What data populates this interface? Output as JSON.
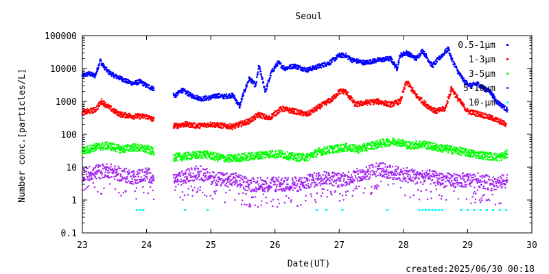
{
  "chart_data": {
    "type": "scatter",
    "title": "Seoul",
    "xlabel": "Date(UT)",
    "ylabel": "Number conc.[particles/L]",
    "x_scale": "linear",
    "y_scale": "log",
    "xlim": [
      23,
      30
    ],
    "ylim": [
      0.1,
      100000
    ],
    "x_ticks": [
      "23",
      "24",
      "25",
      "26",
      "27",
      "28",
      "29",
      "30"
    ],
    "y_ticks": [
      "0.1",
      "1",
      "10",
      "100",
      "1000",
      "10000",
      "100000"
    ],
    "legend_position": "top-right",
    "footer": "created:2025/06/30 00:18",
    "series": [
      {
        "name": "0.5-1μm",
        "color": "#0000ff",
        "x": [
          23.0,
          23.1,
          23.2,
          23.28,
          23.3,
          23.4,
          23.5,
          23.6,
          23.7,
          23.8,
          23.9,
          24.0,
          24.1,
          24.45,
          24.55,
          24.7,
          24.85,
          25.0,
          25.1,
          25.2,
          25.3,
          25.35,
          25.45,
          25.5,
          25.6,
          25.7,
          25.75,
          25.85,
          25.95,
          26.05,
          26.15,
          26.3,
          26.5,
          26.7,
          26.85,
          27.0,
          27.1,
          27.2,
          27.4,
          27.6,
          27.8,
          27.9,
          27.95,
          28.05,
          28.2,
          28.3,
          28.45,
          28.6,
          28.7,
          28.75,
          28.85,
          28.95,
          29.05,
          29.15,
          29.25,
          29.35,
          29.45,
          29.55,
          29.62
        ],
        "y": [
          6000,
          7000,
          6000,
          18000,
          14000,
          8000,
          6000,
          5000,
          4000,
          3500,
          4000,
          3000,
          2500,
          1500,
          2200,
          1500,
          1200,
          1300,
          1500,
          1400,
          1500,
          1500,
          700,
          1500,
          5000,
          3000,
          12000,
          2000,
          8000,
          15000,
          10000,
          12000,
          9000,
          12000,
          15000,
          25000,
          25000,
          18000,
          15000,
          18000,
          20000,
          10000,
          25000,
          30000,
          20000,
          35000,
          12000,
          25000,
          40000,
          20000,
          8000,
          4000,
          3000,
          3500,
          2500,
          2000,
          1000,
          700,
          550
        ]
      },
      {
        "name": "1-3μm",
        "color": "#ff0000",
        "x": [
          23.0,
          23.1,
          23.2,
          23.3,
          23.4,
          23.5,
          23.6,
          23.8,
          24.0,
          24.1,
          24.45,
          24.6,
          24.8,
          25.0,
          25.2,
          25.35,
          25.45,
          25.6,
          25.75,
          25.9,
          26.1,
          26.3,
          26.5,
          26.7,
          26.9,
          27.0,
          27.1,
          27.25,
          27.4,
          27.6,
          27.8,
          27.95,
          28.05,
          28.2,
          28.35,
          28.5,
          28.65,
          28.75,
          28.85,
          29.0,
          29.2,
          29.4,
          29.6
        ],
        "y": [
          450,
          500,
          550,
          1000,
          700,
          500,
          400,
          350,
          350,
          280,
          180,
          200,
          180,
          200,
          180,
          170,
          200,
          250,
          400,
          300,
          600,
          500,
          400,
          700,
          1200,
          2000,
          2000,
          800,
          900,
          1000,
          800,
          1000,
          4000,
          1500,
          800,
          500,
          600,
          2500,
          1200,
          500,
          400,
          300,
          200
        ]
      },
      {
        "name": "3-5μm",
        "color": "#00ff00",
        "x": [
          23.0,
          23.2,
          23.4,
          23.6,
          23.8,
          24.0,
          24.1,
          24.45,
          24.7,
          24.9,
          25.1,
          25.3,
          25.5,
          25.7,
          25.9,
          26.1,
          26.3,
          26.5,
          26.7,
          26.9,
          27.1,
          27.3,
          27.5,
          27.7,
          27.9,
          28.1,
          28.3,
          28.5,
          28.7,
          28.9,
          29.1,
          29.3,
          29.5,
          29.62
        ],
        "y": [
          30,
          40,
          45,
          35,
          40,
          35,
          30,
          20,
          22,
          25,
          20,
          18,
          20,
          22,
          25,
          25,
          20,
          20,
          30,
          35,
          40,
          35,
          45,
          55,
          60,
          45,
          50,
          40,
          35,
          30,
          25,
          22,
          20,
          25
        ]
      },
      {
        "name": "5-10μm",
        "color": "#a020f0",
        "x": [
          23.0,
          23.2,
          23.4,
          23.6,
          23.8,
          24.0,
          24.1,
          24.45,
          24.6,
          24.8,
          25.0,
          25.2,
          25.4,
          25.6,
          25.8,
          26.0,
          26.2,
          26.4,
          26.6,
          26.8,
          27.0,
          27.2,
          27.4,
          27.6,
          27.8,
          28.0,
          28.2,
          28.4,
          28.6,
          28.8,
          29.0,
          29.2,
          29.4,
          29.62
        ],
        "y": [
          6,
          7,
          8,
          6,
          5,
          6,
          5,
          4,
          5,
          7,
          5,
          4,
          4,
          3,
          3,
          3,
          3,
          3,
          4,
          5,
          4,
          5,
          6,
          9,
          7,
          6,
          5,
          5,
          4,
          4,
          4,
          4,
          3,
          4
        ]
      },
      {
        "name": "10-μm",
        "color": "#00ffff",
        "x": [
          23.85,
          23.9,
          23.95,
          24.6,
          24.95,
          26.65,
          26.8,
          27.05,
          27.75,
          28.25,
          28.3,
          28.35,
          28.4,
          28.45,
          28.5,
          28.55,
          28.6,
          28.9,
          29.0,
          29.1,
          29.2,
          29.3,
          29.4,
          29.5,
          29.6
        ],
        "y": [
          0.5,
          0.5,
          0.5,
          0.5,
          0.5,
          0.5,
          0.5,
          0.5,
          0.5,
          0.5,
          0.5,
          0.5,
          0.5,
          0.5,
          0.5,
          0.5,
          0.5,
          0.5,
          0.5,
          0.5,
          0.5,
          0.5,
          0.5,
          0.5,
          0.5
        ]
      }
    ]
  }
}
